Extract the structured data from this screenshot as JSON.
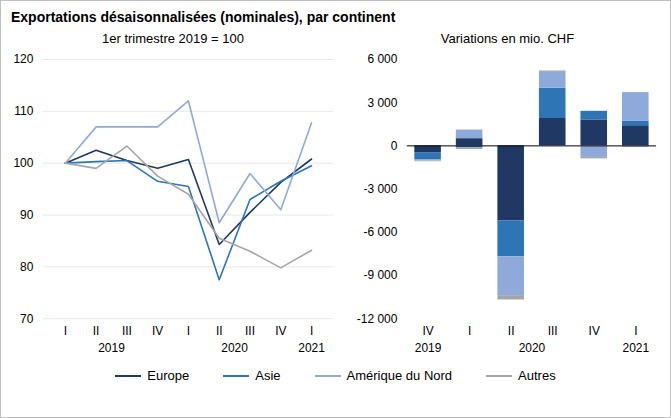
{
  "title": "Exportations désaisonnalisées (nominales), par continent",
  "chart_data": [
    {
      "type": "line",
      "title": "1er trimestre 2019 = 100",
      "categories": [
        "I",
        "II",
        "III",
        "IV",
        "I",
        "II",
        "III",
        "IV",
        "I"
      ],
      "annotations": [
        {
          "text": "2019",
          "from": 0,
          "to": 3
        },
        {
          "text": "2020",
          "from": 4,
          "to": 7
        },
        {
          "text": "2021",
          "from": 8,
          "to": 8
        }
      ],
      "series": [
        {
          "name": "Europe",
          "color": "#1f3864",
          "values": [
            100,
            102.5,
            100.5,
            99,
            100.7,
            84.3,
            90.5,
            96.3,
            100.8
          ]
        },
        {
          "name": "Asie",
          "color": "#2e75b6",
          "values": [
            100,
            100.3,
            100.5,
            96.5,
            95.5,
            77.5,
            93,
            96.5,
            99.5
          ]
        },
        {
          "name": "Amérique du Nord",
          "color": "#8eaadb",
          "values": [
            100,
            107,
            107,
            107,
            112,
            88.5,
            98,
            91,
            107.8
          ]
        },
        {
          "name": "Autres",
          "color": "#a6a6a6",
          "values": [
            100,
            99,
            103.3,
            97.5,
            94,
            85.5,
            83,
            79.8,
            83.2
          ]
        }
      ],
      "ylim": [
        70,
        120
      ],
      "yticks": [
        70,
        80,
        90,
        100,
        110,
        120
      ],
      "grid": true,
      "legend": "bottom"
    },
    {
      "type": "bar",
      "stacked": true,
      "title": "Variations en mio. CHF",
      "categories": [
        "IV",
        "I",
        "II",
        "III",
        "IV",
        "I"
      ],
      "annotations": [
        {
          "text": "2019",
          "from": 0,
          "to": 0
        },
        {
          "text": "2020",
          "from": 1,
          "to": 4
        },
        {
          "text": "2021",
          "from": 5,
          "to": 5
        }
      ],
      "series": [
        {
          "name": "Europe",
          "color": "#1f3864",
          "values": [
            -500,
            500,
            -5200,
            1900,
            1800,
            1400
          ]
        },
        {
          "name": "Asie",
          "color": "#2e75b6",
          "values": [
            -450,
            -150,
            -2500,
            2100,
            600,
            300
          ]
        },
        {
          "name": "Amérique du Nord",
          "color": "#8eaadb",
          "values": [
            -100,
            600,
            -2700,
            1100,
            -800,
            2000
          ]
        },
        {
          "name": "Autres",
          "color": "#a6a6a6",
          "values": [
            -50,
            -100,
            -300,
            100,
            -100,
            -100
          ]
        }
      ],
      "ylim": [
        -12000,
        6000
      ],
      "yticks": [
        {
          "value": -12000,
          "label": "-12 000"
        },
        {
          "value": -9000,
          "label": "-9 000"
        },
        {
          "value": -6000,
          "label": "-6 000"
        },
        {
          "value": -3000,
          "label": "-3 000"
        },
        0,
        {
          "value": 3000,
          "label": "3 000"
        },
        {
          "value": 6000,
          "label": "6 000"
        }
      ],
      "grid": false
    }
  ]
}
